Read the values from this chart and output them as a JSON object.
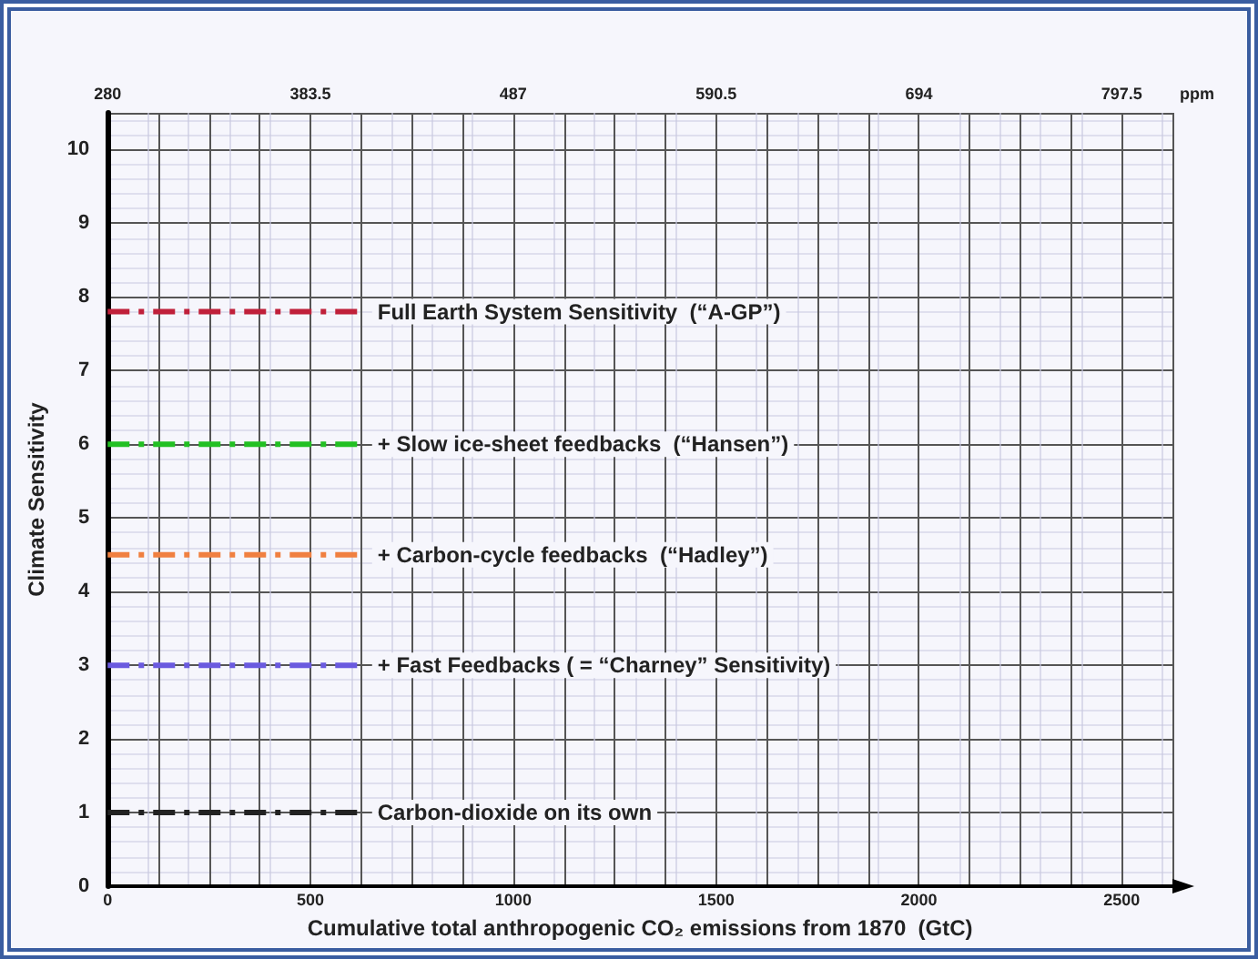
{
  "chart_data": {
    "type": "line",
    "xlabel": "Cumulative total anthropogenic CO₂ emissions from 1870  (GtC)",
    "ylabel": "Climate Sensitivity",
    "x2label": "ppm",
    "xlim": [
      0,
      2625
    ],
    "ylim": [
      0,
      10.5
    ],
    "xticks": [
      0,
      {
        "value": 125,
        "label": null
      },
      {
        "value": 250,
        "label": null
      },
      {
        "value": 375,
        "label": null
      },
      500,
      {
        "value": 625,
        "label": null
      },
      {
        "value": 750,
        "label": null
      },
      {
        "value": 875,
        "label": null
      },
      1000,
      {
        "value": 1125,
        "label": null
      },
      {
        "value": 1250,
        "label": null
      },
      {
        "value": 1375,
        "label": null
      },
      1500,
      {
        "value": 1625,
        "label": null
      },
      {
        "value": 1750,
        "label": null
      },
      {
        "value": 1875,
        "label": null
      },
      2000,
      {
        "value": 2125,
        "label": null
      },
      {
        "value": 2250,
        "label": null
      },
      {
        "value": 2375,
        "label": null
      },
      2500,
      {
        "value": 2625,
        "label": null
      }
    ],
    "yticks": [
      0,
      1,
      2,
      3,
      4,
      5,
      6,
      7,
      8,
      9,
      10
    ],
    "x2lim": [
      280,
      823.375
    ],
    "x2ticks": [
      280,
      383.5,
      487,
      590.5,
      694,
      797.5
    ],
    "x": [
      0,
      625
    ],
    "grid": true,
    "legend": false,
    "marker": "none",
    "line_style": "dashed",
    "series": [
      {
        "name": "Full Earth System Sensitivity  (“A-GP”)",
        "color": "#c0203a",
        "values": [
          7.8,
          7.8
        ]
      },
      {
        "name": "+ Slow ice-sheet feedbacks  (“Hansen”)",
        "color": "#22c022",
        "values": [
          6,
          6
        ]
      },
      {
        "name": "+ Carbon-cycle feedbacks  (“Hadley”)",
        "color": "#f08040",
        "values": [
          4.5,
          4.5
        ]
      },
      {
        "name": "+ Fast Feedbacks ( = “Charney” Sensitivity)",
        "color": "#6a5adf",
        "values": [
          3,
          3
        ]
      },
      {
        "name": "Carbon-dioxide on its own",
        "color": "#222222",
        "values": [
          1,
          1
        ]
      }
    ]
  }
}
